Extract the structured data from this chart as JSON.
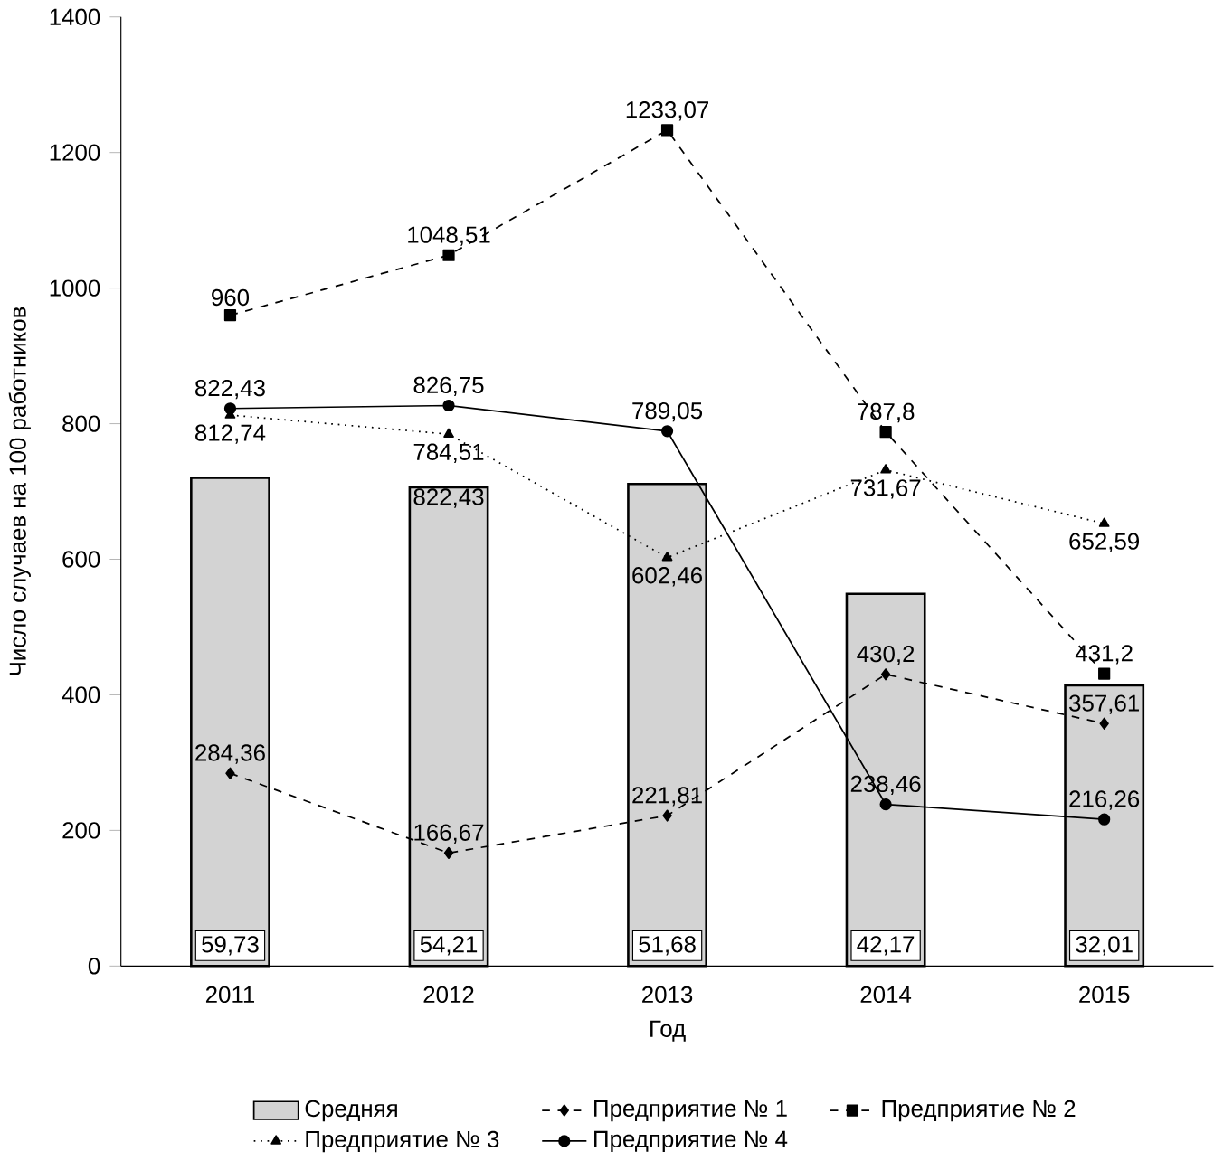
{
  "chart_data": {
    "type": "bar",
    "xlabel": "Год",
    "ylabel": "Число случаев на 100 работников",
    "categories": [
      "2011",
      "2012",
      "2013",
      "2014",
      "2015"
    ],
    "ylim": [
      0,
      1400
    ],
    "yticks": [
      0,
      200,
      400,
      600,
      800,
      1000,
      1200,
      1400
    ],
    "legend": "bottom",
    "grid": false,
    "series": [
      {
        "name": "Средняя",
        "color": "#d3d3d3",
        "values": [
          720,
          706,
          711,
          549,
          414
        ]
      },
      {
        "name": "Предприятие № 1",
        "type": "line",
        "color": "#000000",
        "marker": "diamond",
        "line_style": "dashed",
        "values": [
          284.36,
          166.67,
          221.81,
          430.2,
          357.61
        ],
        "value_labels": [
          "284,36",
          "166,67",
          "221,81",
          "430,2",
          "357,61"
        ]
      },
      {
        "name": "Предприятие № 2",
        "type": "line",
        "color": "#000000",
        "marker": "square",
        "line_style": "dashed",
        "values": [
          960,
          1048.51,
          1233.07,
          787.8,
          431.2
        ],
        "value_labels": [
          "960",
          "1048,51",
          "1233,07",
          "787,8",
          "431,2"
        ]
      },
      {
        "name": "Предприятие № 3",
        "type": "line",
        "color": "#000000",
        "marker": "triangle",
        "line_style": "dotted",
        "values": [
          812.74,
          784.51,
          602.46,
          731.67,
          652.59
        ],
        "value_labels": [
          "812,74",
          "784,51",
          "602,46",
          "731,67",
          "652,59"
        ]
      },
      {
        "name": "Предприятие № 4",
        "type": "line",
        "color": "#000000",
        "marker": "circle",
        "line_style": "solid",
        "values": [
          822.43,
          826.75,
          789.05,
          238.46,
          216.26
        ],
        "value_labels": [
          "822,43",
          "826,75",
          "789,05",
          "238,46",
          "216,26"
        ]
      }
    ],
    "annotations": [
      "822,43",
      {
        "text": "59,73",
        "x": "2011",
        "y": 30
      },
      {
        "text": "54,21",
        "x": "2012",
        "y": 30
      },
      {
        "text": "51,68",
        "x": "2013",
        "y": 30
      },
      {
        "text": "42,17",
        "x": "2014",
        "y": 30
      },
      {
        "text": "32,01",
        "x": "2015",
        "y": 30
      }
    ]
  }
}
